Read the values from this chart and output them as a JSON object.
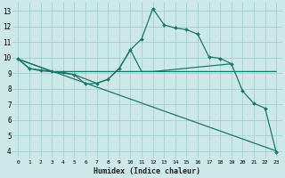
{
  "xlabel": "Humidex (Indice chaleur)",
  "bg_color": "#cce8e8",
  "grid_color": "#aad4d4",
  "line_color": "#1a7868",
  "xlim": [
    -0.5,
    23.5
  ],
  "ylim": [
    3.5,
    13.5
  ],
  "xticks": [
    0,
    1,
    2,
    3,
    4,
    5,
    6,
    7,
    8,
    9,
    10,
    11,
    12,
    13,
    14,
    15,
    16,
    17,
    18,
    19,
    20,
    21,
    22,
    23
  ],
  "yticks": [
    4,
    5,
    6,
    7,
    8,
    9,
    10,
    11,
    12,
    13
  ],
  "curve_main": {
    "x": [
      0,
      1,
      2,
      3,
      4,
      5,
      6,
      7,
      8,
      9,
      10,
      11,
      12,
      13,
      14,
      15,
      16,
      17,
      18,
      19,
      20,
      21,
      22,
      23
    ],
    "y": [
      9.9,
      9.3,
      9.2,
      9.1,
      9.05,
      8.9,
      8.3,
      8.35,
      8.6,
      9.3,
      10.5,
      11.2,
      13.15,
      12.1,
      11.9,
      11.8,
      11.5,
      10.05,
      9.95,
      9.6,
      7.85,
      7.05,
      6.75,
      3.9
    ]
  },
  "curve_flat": {
    "x": [
      0,
      1,
      2,
      3,
      4,
      5,
      6,
      7,
      8,
      9,
      10,
      11,
      12,
      13,
      14,
      15,
      16,
      17,
      18,
      19,
      20,
      21,
      22,
      23
    ],
    "y": [
      9.9,
      9.3,
      9.15,
      9.1,
      9.1,
      9.1,
      9.1,
      9.1,
      9.1,
      9.1,
      9.1,
      9.1,
      9.1,
      9.1,
      9.1,
      9.1,
      9.1,
      9.1,
      9.1,
      9.1,
      9.1,
      9.1,
      9.1,
      9.1
    ]
  },
  "curve_rise": {
    "x": [
      0,
      3,
      5,
      7,
      8,
      9,
      10,
      11,
      12,
      19
    ],
    "y": [
      9.9,
      9.1,
      8.9,
      8.35,
      8.6,
      9.3,
      10.5,
      9.1,
      9.1,
      9.6
    ]
  },
  "curve_diagonal": {
    "x": [
      0,
      23
    ],
    "y": [
      9.9,
      4.0
    ]
  }
}
